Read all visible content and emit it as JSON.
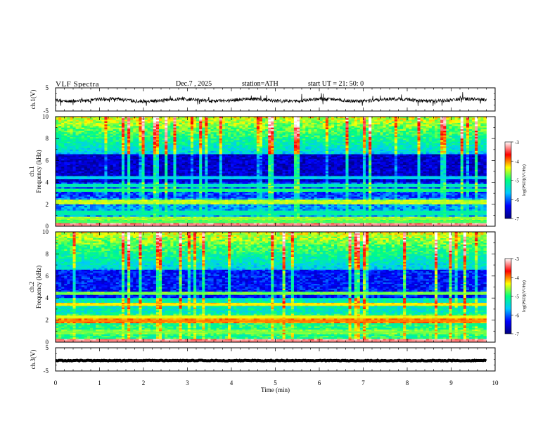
{
  "header": {
    "title": "VLF  Spectra",
    "date": "Dec.7  , 2025",
    "station": "station=ATH",
    "start": "start  UT  =   21: 50: 0"
  },
  "chart_data": [
    {
      "type": "line",
      "panel": "ch1-waveform",
      "ylabel": "ch.1(V)",
      "yticks": [
        "5",
        "-5"
      ],
      "ylim": [
        -5,
        5
      ],
      "xlim": [
        0,
        10
      ],
      "data_end_min": 9.8,
      "approx_level_V": -0.3
    },
    {
      "type": "heatmap",
      "panel": "ch1-spectrogram",
      "ylabel": [
        "ch.1",
        "Frequency  (kHz)"
      ],
      "ylim": [
        0,
        10
      ],
      "yticks": [
        "0",
        "2",
        "4",
        "6",
        "8",
        "10"
      ],
      "xlim": [
        0,
        10
      ],
      "data_end_min": 9.8,
      "colorbar": {
        "label": "log(PSD)(V²/Hz)",
        "range": [
          -7,
          -3
        ],
        "ticks": [
          "-3",
          "-4",
          "-5",
          "-6",
          "-7"
        ]
      },
      "bands_khz": [
        {
          "f": 0.1,
          "level": -3.3
        },
        {
          "f": 0.4,
          "level": -4.8
        },
        {
          "f": 0.7,
          "level": -4.6
        },
        {
          "f": 1.25,
          "level": -5.2
        },
        {
          "f": 2.2,
          "level": -4.5
        },
        {
          "f": 3.3,
          "level": -5.0
        },
        {
          "f": 3.7,
          "level": -5.3
        },
        {
          "f": 4.4,
          "level": -5.6
        }
      ]
    },
    {
      "type": "heatmap",
      "panel": "ch2-spectrogram",
      "ylabel": [
        "ch.2",
        "Frequency  (kHz)"
      ],
      "ylim": [
        0,
        10
      ],
      "yticks": [
        "0",
        "2",
        "4",
        "6",
        "8",
        "10"
      ],
      "xlim": [
        0,
        10
      ],
      "data_end_min": 9.8,
      "colorbar": {
        "label": "log(PSD)(V²/Hz)",
        "range": [
          -7,
          -3
        ],
        "ticks": [
          "-3",
          "-4",
          "-5",
          "-6",
          "-7"
        ]
      },
      "bands_khz": [
        {
          "f": 0.1,
          "level": -3.3
        },
        {
          "f": 0.9,
          "level": -4.7
        },
        {
          "f": 1.9,
          "level": -4.0
        },
        {
          "f": 2.3,
          "level": -4.4
        },
        {
          "f": 3.4,
          "level": -4.3
        },
        {
          "f": 4.4,
          "level": -4.7
        }
      ]
    },
    {
      "type": "line",
      "panel": "ch3-waveform",
      "ylabel": "ch.3(V)",
      "yticks": [
        "5",
        "-5"
      ],
      "ylim": [
        -5,
        5
      ],
      "xlim": [
        0,
        10
      ],
      "data_end_min": 9.8,
      "approx_level_V": -0.5
    }
  ],
  "xaxis": {
    "label": "Time  (min)",
    "ticks": [
      "0",
      "1",
      "2",
      "3",
      "4",
      "5",
      "6",
      "7",
      "8",
      "9",
      "10"
    ]
  },
  "colors": {
    "colormap": [
      "#00007f",
      "#0000ff",
      "#00c8ff",
      "#00ff80",
      "#ffff00",
      "#ff0000",
      "#ffffff"
    ]
  }
}
